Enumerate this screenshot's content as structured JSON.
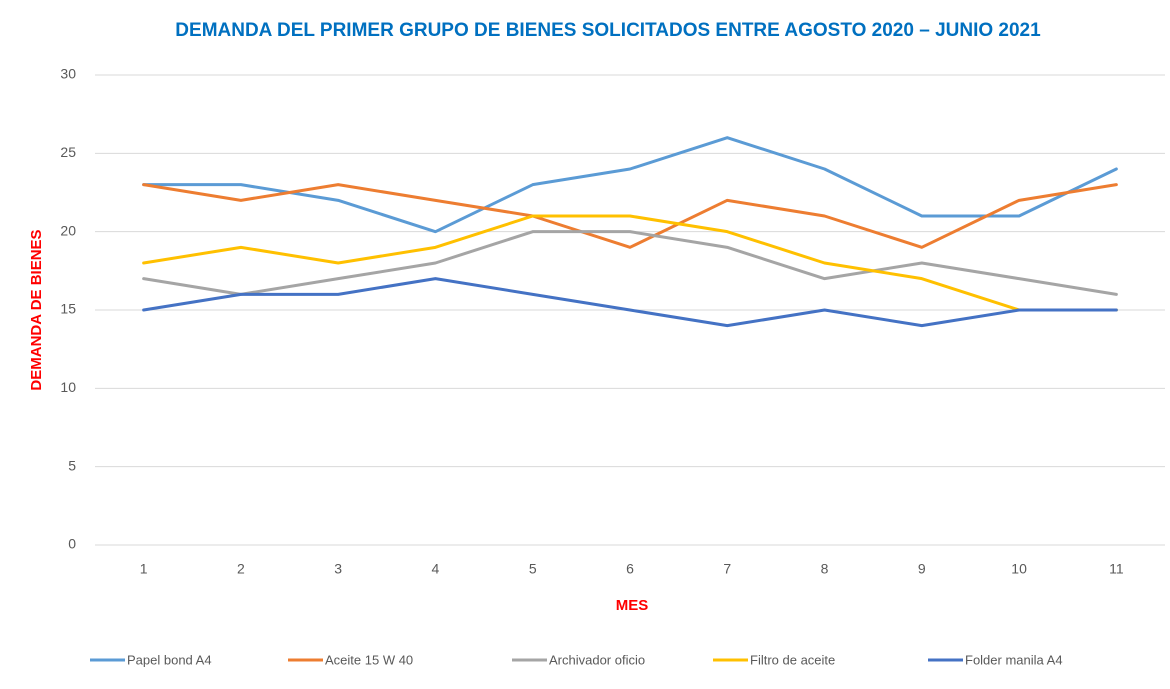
{
  "chart_data": {
    "type": "line",
    "title": "DEMANDA DEL PRIMER GRUPO DE BIENES SOLICITADOS ENTRE AGOSTO 2020 – JUNIO 2021",
    "x_label": "MES",
    "y_label": "DEMANDA DE BIENES",
    "categories": [
      "1",
      "2",
      "3",
      "4",
      "5",
      "6",
      "7",
      "8",
      "9",
      "10",
      "11"
    ],
    "series": [
      {
        "name": "Papel bond A4",
        "color": "#5b9bd5",
        "values": [
          23,
          23,
          22,
          20,
          23,
          24,
          26,
          24,
          21,
          21,
          24
        ]
      },
      {
        "name": "Aceite 15 W 40",
        "color": "#ed7d31",
        "values": [
          23,
          22,
          23,
          22,
          21,
          19,
          22,
          21,
          19,
          22,
          23
        ]
      },
      {
        "name": "Archivador oficio",
        "color": "#a5a5a5",
        "values": [
          17,
          16,
          17,
          18,
          20,
          20,
          19,
          17,
          18,
          17,
          16
        ]
      },
      {
        "name": "Filtro de aceite",
        "color": "#ffc000",
        "values": [
          18,
          19,
          18,
          19,
          21,
          21,
          20,
          18,
          17,
          15,
          15
        ]
      },
      {
        "name": "Folder manila A4",
        "color": "#4472c4",
        "values": [
          15,
          16,
          16,
          17,
          16,
          15,
          14,
          15,
          14,
          15,
          15
        ]
      }
    ],
    "ylim": [
      0,
      30
    ],
    "yticks": [
      0,
      5,
      10,
      15,
      20,
      25,
      30
    ],
    "grid": true,
    "legend": "bottom"
  }
}
